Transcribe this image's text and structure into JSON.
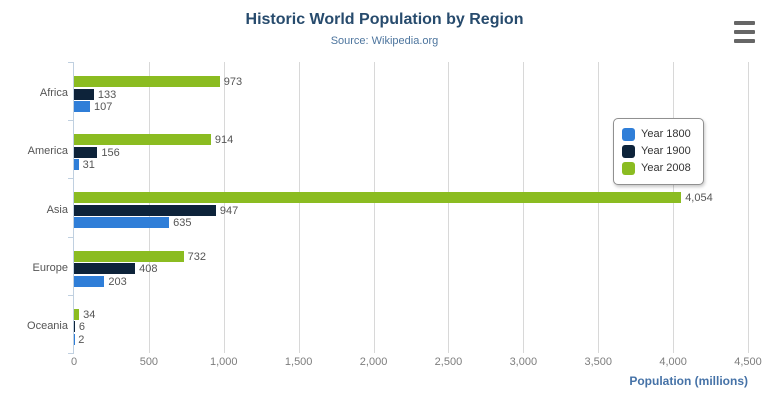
{
  "header": {
    "title": "Historic World Population by Region",
    "subtitle": "Source: Wikipedia.org"
  },
  "menu": {
    "icon": "hamburger-menu-icon"
  },
  "chart_data": {
    "type": "bar",
    "orientation": "horizontal",
    "title": "Historic World Population by Region",
    "subtitle": "Source: Wikipedia.org",
    "categories": [
      "Africa",
      "America",
      "Asia",
      "Europe",
      "Oceania"
    ],
    "series": [
      {
        "name": "Year 1800",
        "color": "#2f7ed8",
        "values": [
          107,
          31,
          635,
          203,
          2
        ]
      },
      {
        "name": "Year 1900",
        "color": "#0d233a",
        "values": [
          133,
          156,
          947,
          408,
          6
        ]
      },
      {
        "name": "Year 2008",
        "color": "#8bbc21",
        "values": [
          973,
          914,
          4054,
          732,
          34
        ]
      }
    ],
    "bar_order_top_to_bottom": [
      "Year 2008",
      "Year 1900",
      "Year 1800"
    ],
    "data_labels_visible": true,
    "xlabel": "Population (millions)",
    "ylabel": "",
    "xlim": [
      0,
      4500
    ],
    "x_tick_step": 500,
    "x_tick_labels": [
      "0",
      "500",
      "1,000",
      "1,500",
      "2,000",
      "2,500",
      "3,000",
      "3,500",
      "4,000",
      "4,500"
    ],
    "grid": true,
    "legend_position": "right-middle",
    "legend_items": [
      "Year 1800",
      "Year 1900",
      "Year 2008"
    ]
  },
  "colors": {
    "title": "#274b6d",
    "subtitle": "#4d759e",
    "axis_title": "#4572a7",
    "grid_line": "#d8d8d8",
    "axis_line": "#c0d0e0",
    "tick_label": "#7d7d7d",
    "category_label": "#555555",
    "data_label": "#555555",
    "legend_border": "#909090",
    "menu_icon": "#666666"
  }
}
